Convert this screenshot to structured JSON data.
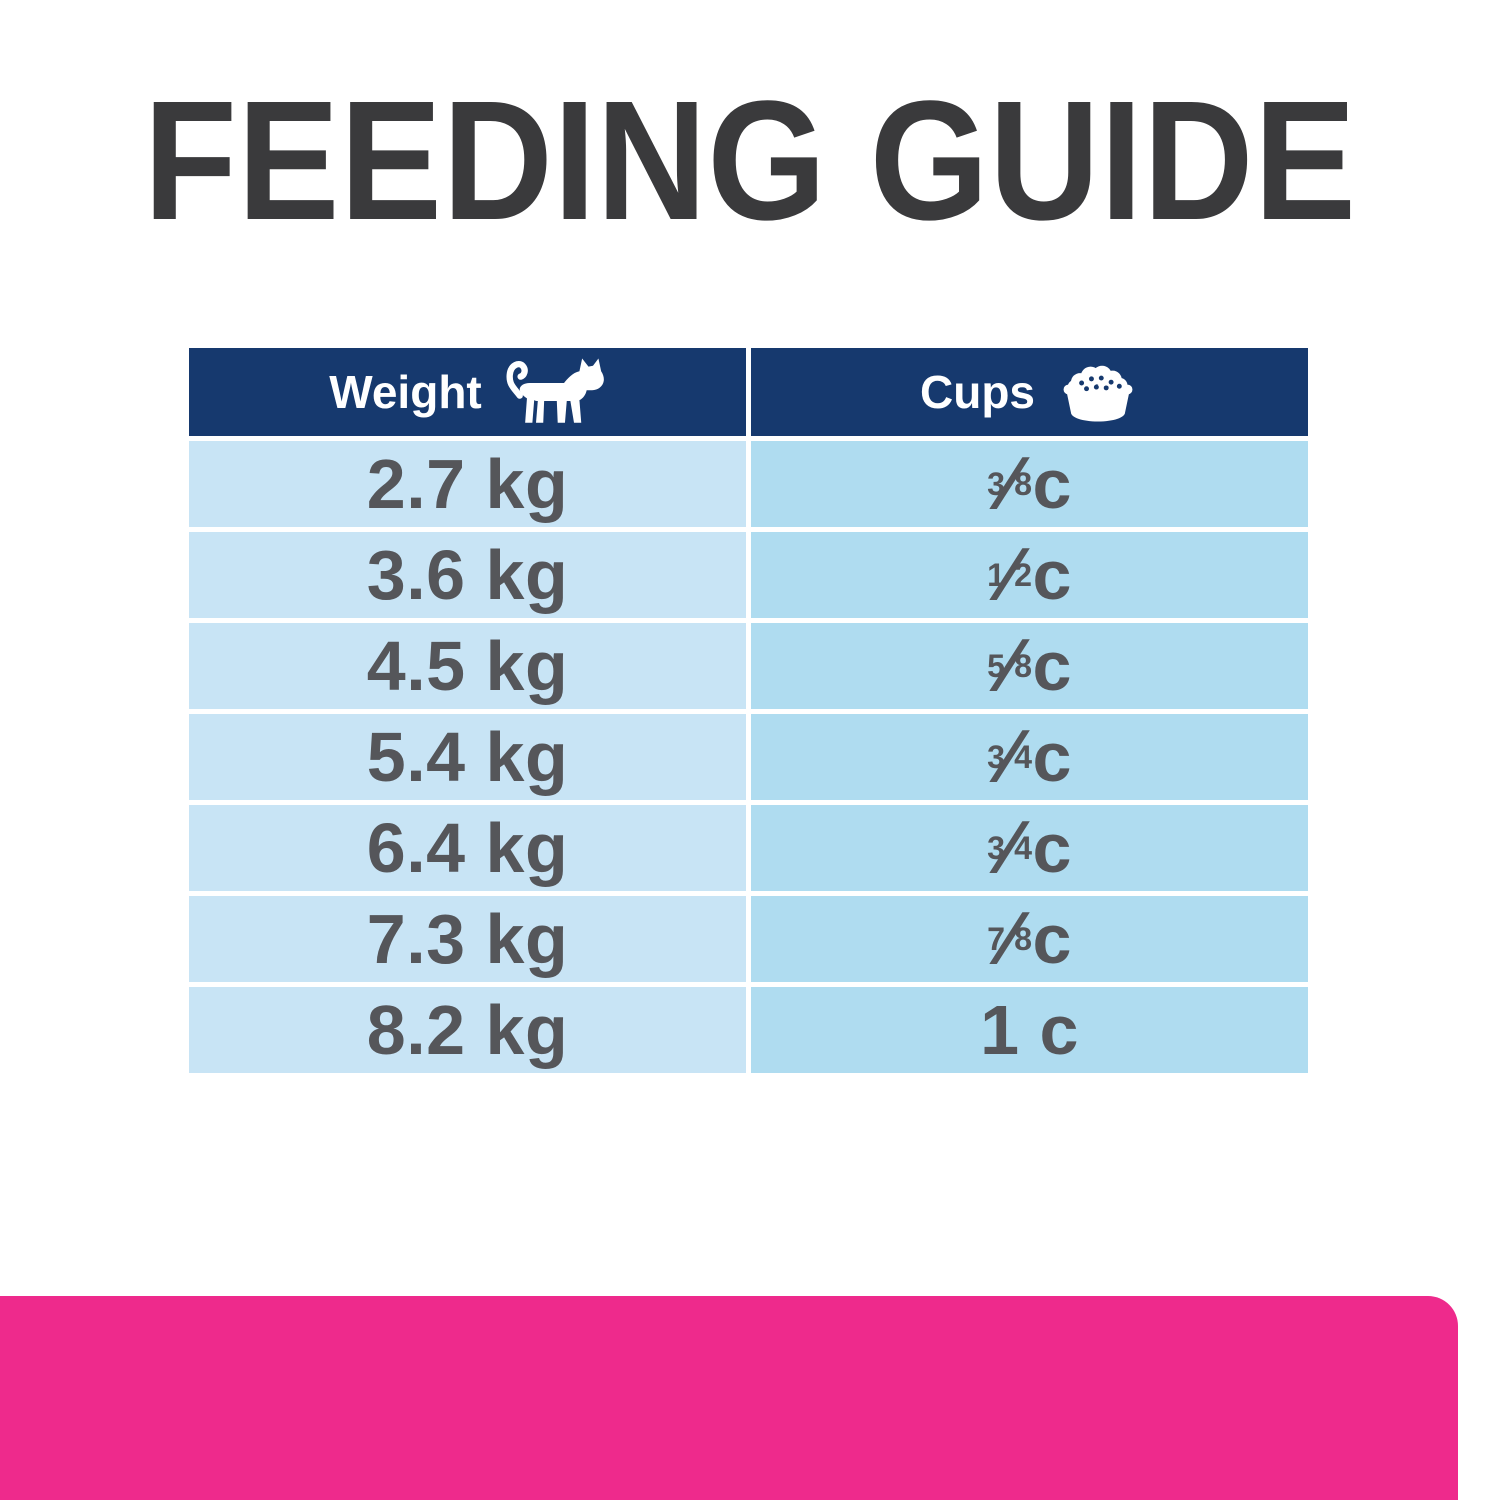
{
  "title": "FEEDING GUIDE",
  "colors": {
    "title_text": "#3A3A3C",
    "header_bg": "#16396E",
    "header_text": "#FFFFFF",
    "weight_col_bg": "#C8E4F5",
    "cups_col_bg": "#AFDCF0",
    "cell_text": "#55565A",
    "accent_bar": "#EE2A8C",
    "page_bg": "#FFFFFF"
  },
  "chart_data": {
    "type": "table",
    "title": "FEEDING GUIDE",
    "columns": [
      "Weight",
      "Cups"
    ],
    "column_icons": [
      "cat-icon",
      "food-bowl-icon"
    ],
    "rows": [
      [
        "2.7 kg",
        "3/8 c"
      ],
      [
        "3.6 kg",
        "1/2 c"
      ],
      [
        "4.5 kg",
        "5/8 c"
      ],
      [
        "5.4 kg",
        "3/4 c"
      ],
      [
        "6.4 kg",
        "3/4 c"
      ],
      [
        "7.3 kg",
        "7/8 c"
      ],
      [
        "8.2 kg",
        "1 c"
      ]
    ]
  }
}
